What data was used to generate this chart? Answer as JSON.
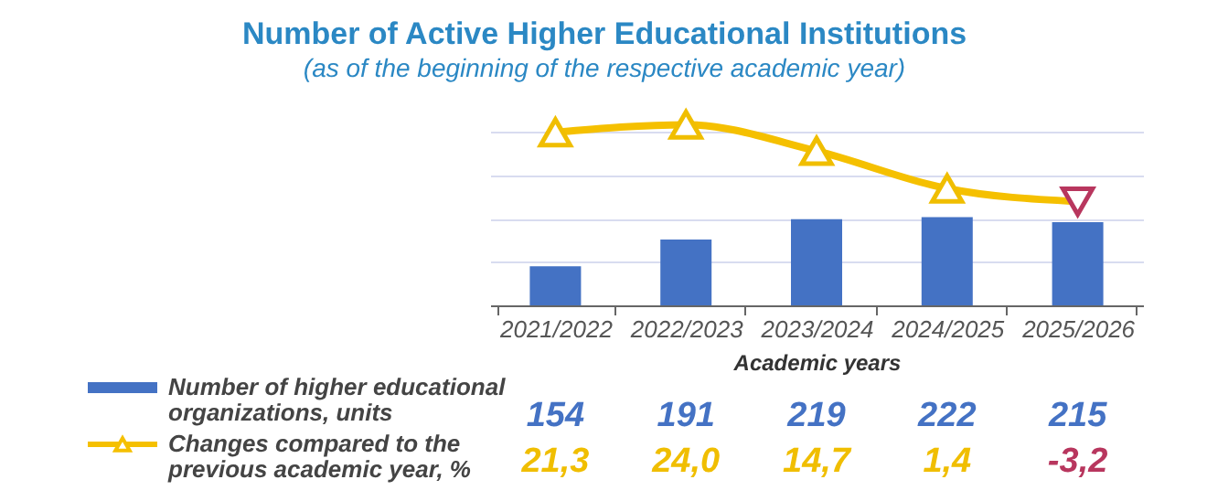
{
  "chart_data": {
    "type": "bar",
    "title": "Number of Active Higher Educational Institutions",
    "subtitle": "(as of the beginning of the respective academic year)",
    "xlabel": "Academic years",
    "categories": [
      "2021/2022",
      "2022/2023",
      "2023/2024",
      "2024/2025",
      "2025/2026"
    ],
    "series": [
      {
        "name": "Number of higher educational organizations, units",
        "color": "#4472c4",
        "values": [
          154,
          191,
          219,
          222,
          215
        ],
        "value_labels": [
          "154",
          "191",
          "219",
          "222",
          "215"
        ]
      },
      {
        "name": "Changes compared to the previous academic year, %",
        "type": "line",
        "axis": "y2",
        "color": "#f5c000",
        "colors": [
          "#f0be00",
          "#f0be00",
          "#f0be00",
          "#f0be00",
          "#b8365e"
        ],
        "values": [
          21.3,
          24.0,
          14.7,
          1.4,
          -3.2
        ],
        "value_labels": [
          "21,3",
          "24,0",
          "14,7",
          "1,4",
          "-3,2"
        ]
      }
    ],
    "ylim": [
      100,
      340
    ],
    "yticks": [
      {
        "value": 160,
        "label": null
      },
      {
        "value": 220,
        "label": null
      },
      {
        "value": 280,
        "label": null
      },
      {
        "value": 340,
        "label": null
      }
    ],
    "tick_labels": "x",
    "data_labels": true,
    "grid": "y",
    "legend": "bottom left",
    "marker": "triangle",
    "line_style": "solid"
  }
}
